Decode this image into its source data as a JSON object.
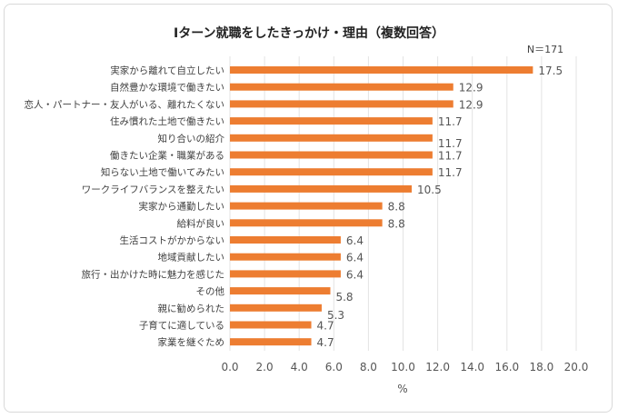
{
  "chart_data": {
    "type": "bar",
    "orientation": "horizontal",
    "title": "Iターン就職をしたきっかけ・理由（複数回答）",
    "note": "N＝171",
    "xlabel": "%",
    "ylabel": "",
    "xlim": [
      0,
      20
    ],
    "xticks": [
      "0.0",
      "2.0",
      "4.0",
      "6.0",
      "8.0",
      "10.0",
      "12.0",
      "14.0",
      "16.0",
      "18.0",
      "20.0"
    ],
    "grid": true,
    "bar_color": "#ED7D31",
    "categories": [
      "実家から離れて自立したい",
      "自然豊かな環境で働きたい",
      "恋人・パートナー・友人がいる、離れたくない",
      "住み慣れた土地で働きたい",
      "知り合いの紹介",
      "働きたい企業・職業がある",
      "知らない土地で働いてみたい",
      "ワークライフバランスを整えたい",
      "実家から通勤したい",
      "給料が良い",
      "生活コストがかからない",
      "地域貢献したい",
      "旅行・出かけた時に魅力を感じた",
      "その他",
      "親に勧められた",
      "子育てに適している",
      "家業を継ぐため"
    ],
    "values": [
      17.5,
      12.9,
      12.9,
      11.7,
      11.7,
      11.7,
      11.7,
      10.5,
      8.8,
      8.8,
      6.4,
      6.4,
      6.4,
      5.8,
      5.3,
      4.7,
      4.7
    ],
    "value_labels": [
      "17.5",
      "12.9",
      "12.9",
      "11.7",
      "11.7",
      "11.7",
      "11.7",
      "10.5",
      "8.8",
      "8.8",
      "6.4",
      "6.4",
      "6.4",
      "5.8",
      "5.3",
      "4.7",
      "4.7"
    ]
  }
}
